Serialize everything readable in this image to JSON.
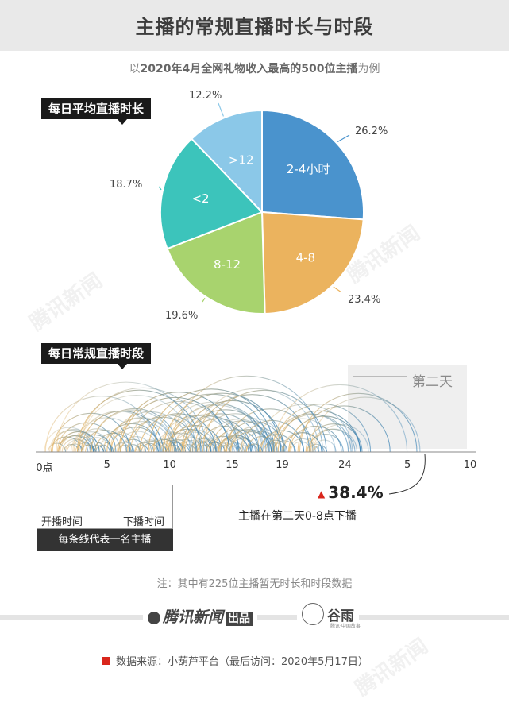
{
  "title": "主播的常规直播时长与时段",
  "subtitle": {
    "pre": "以",
    "bold": "2020年4月全网礼物收入最高的500位主播",
    "post": "为例"
  },
  "section1_tag": "每日平均直播时长",
  "section2_tag": "每日常规直播时段",
  "chart_data": [
    {
      "type": "pie",
      "title": "每日平均直播时长",
      "slices": [
        {
          "label": "2-4小时",
          "value": 26.2,
          "value_label": "26.2%",
          "color": "#4a93cd"
        },
        {
          "label": "4-8",
          "value": 23.4,
          "value_label": "23.4%",
          "color": "#ebb35e"
        },
        {
          "label": "8-12",
          "value": 19.6,
          "value_label": "19.6%",
          "color": "#a8d36e"
        },
        {
          "label": "<2",
          "value": 18.7,
          "value_label": "18.7%",
          "color": "#3cc4bb"
        },
        {
          "label": ">12",
          "value": 12.2,
          "value_label": "12.2%",
          "color": "#8bc8e8"
        }
      ]
    },
    {
      "type": "arc",
      "title": "每日常规直播时段",
      "x_ticks": [
        "0点",
        "5",
        "10",
        "15",
        "19",
        "24",
        "5",
        "10"
      ],
      "x_tick_values": [
        0,
        5,
        10,
        15,
        19,
        24,
        29,
        34
      ],
      "xlim": [
        0,
        34
      ],
      "next_day_label": "第二天",
      "highlight": {
        "value": "38.4%",
        "text": "主播在第二天0-8点下播"
      },
      "start_color": "#e8b86a",
      "end_color": "#3f86b8",
      "legend": {
        "start_label": "开播时间",
        "end_label": "下播时间",
        "caption": "每条线代表一名主播"
      }
    }
  ],
  "footnote": "注：其中有225位主播暂无时长和时段数据",
  "brand": {
    "name": "腾讯新闻",
    "badge": "出品",
    "partner": "谷雨",
    "partner_sub": "腾讯·中国故事"
  },
  "source": "数据来源：小葫芦平台（最后访问：2020年5月17日）",
  "watermark": "腾讯新闻"
}
